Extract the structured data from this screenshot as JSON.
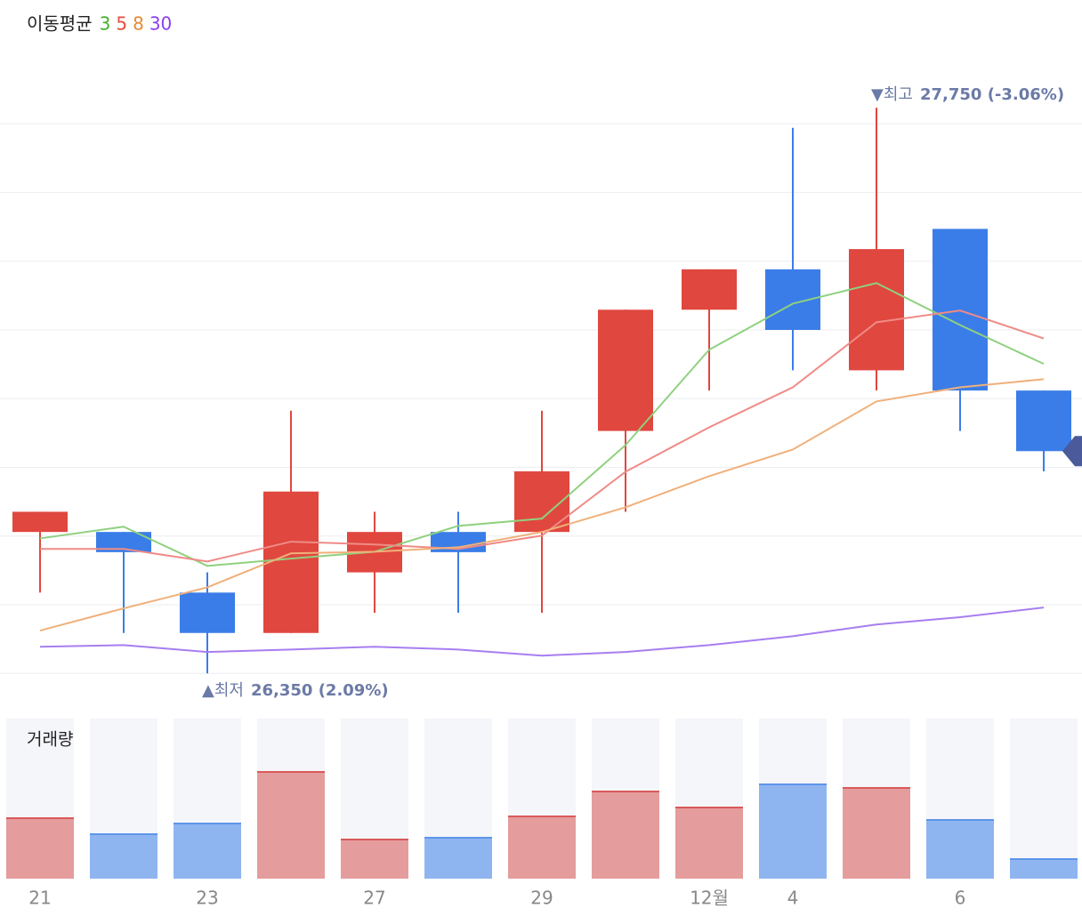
{
  "chart_data": {
    "type": "candlestick",
    "legend_title": "이동평균",
    "categories": [
      "21",
      null,
      "23",
      null,
      "27",
      null,
      "29",
      null,
      "12월",
      "4",
      null,
      "6",
      null
    ],
    "open": [
      26700,
      26700,
      26550,
      26450,
      26600,
      26700,
      26700,
      26950,
      27250,
      27350,
      27100,
      27450,
      27050
    ],
    "high": [
      26750,
      26700,
      26600,
      27000,
      26750,
      26750,
      27000,
      27250,
      27350,
      27700,
      27750,
      27450,
      27050
    ],
    "low": [
      26550,
      26450,
      26350,
      26450,
      26500,
      26500,
      26500,
      26750,
      27050,
      27100,
      27050,
      26950,
      26850
    ],
    "close": [
      26750,
      26650,
      26450,
      26800,
      26700,
      26650,
      26850,
      27250,
      27350,
      27200,
      27400,
      27050,
      26900
    ],
    "up_color": "#e0473f",
    "down_color": "#3a7de8",
    "ylim": [
      26280,
      27880
    ],
    "yticks": [
      26350,
      26520,
      26690,
      26860,
      27030,
      27200,
      27370,
      27540,
      27710
    ],
    "grid": true,
    "moving_averages": [
      {
        "name": "3",
        "color": "#8fd17f",
        "label_color": "#43b02a",
        "values": [
          26684,
          26713,
          26616,
          26634,
          26651,
          26715,
          26733,
          26915,
          27151,
          27265,
          27316,
          27212,
          27116
        ]
      },
      {
        "name": "5",
        "color": "#ef8b86",
        "label_color": "#e54b3f",
        "values": [
          26658,
          26658,
          26627,
          26676,
          26669,
          26658,
          26691,
          26849,
          26959,
          27058,
          27219,
          27248,
          27179
        ]
      },
      {
        "name": "8",
        "color": "#f0b07a",
        "label_color": "#e88a33",
        "values": [
          26456,
          26511,
          26563,
          26647,
          26651,
          26662,
          26700,
          26761,
          26838,
          26904,
          27023,
          27058,
          27078
        ]
      },
      {
        "name": "30",
        "color": "#a77ef0",
        "label_color": "#8a3ff0",
        "values": [
          26416,
          26420,
          26403,
          26409,
          26416,
          26409,
          26394,
          26403,
          26420,
          26442,
          26471,
          26489,
          26513
        ]
      }
    ],
    "annotations": [
      {
        "label": "▼최고",
        "value": 27750,
        "value_label": "27,750 (-3.06%)"
      },
      {
        "label": "▲최저",
        "value": 26350,
        "value_label": "26,350 (2.09%)"
      }
    ],
    "volume": {
      "title": "거래량",
      "values": [
        68,
        50,
        62,
        120,
        44,
        46,
        70,
        98,
        80,
        106,
        102,
        66,
        22
      ],
      "ylim": [
        0,
        180
      ],
      "up_color": "#e59c9c",
      "up_line": "#d95a5a",
      "down_color": "#8fb5f0",
      "down_line": "#5d95ea"
    }
  }
}
